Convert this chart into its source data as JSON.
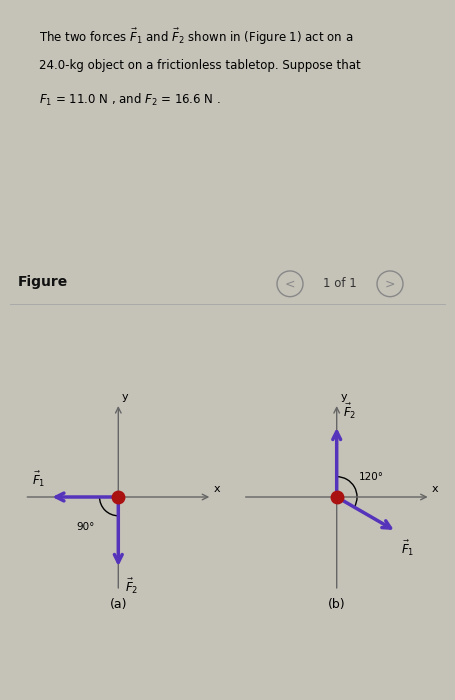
{
  "page_bg": "#c5c2b8",
  "text_box_color": "#d4d0c0",
  "figure_area_bg": "#d0cdc3",
  "title_line1": "The two forces $\\vec{F}_1$ and $\\vec{F}_2$ shown in (Figure 1) act on a",
  "title_line2": "24.0-kg object on a frictionless tabletop. Suppose that",
  "title_line3": "$F_1$ = 11.0 N , and $F_2$ = 16.6 N .",
  "figure_label": "Figure",
  "page_label": "1 of 1",
  "label_a": "(a)",
  "label_b": "(b)",
  "arrow_color": "#5533bb",
  "dot_color": "#aa1111",
  "axis_color": "#666666",
  "angle_a_label": "90°",
  "angle_b_label": "120°",
  "f1_label_a": "$\\vec{F}_1$",
  "f2_label_a": "$\\vec{F}_2$",
  "f1_label_b": "$\\vec{F}_1$",
  "f2_label_b": "$\\vec{F}_2$",
  "nav_color": "#888888"
}
